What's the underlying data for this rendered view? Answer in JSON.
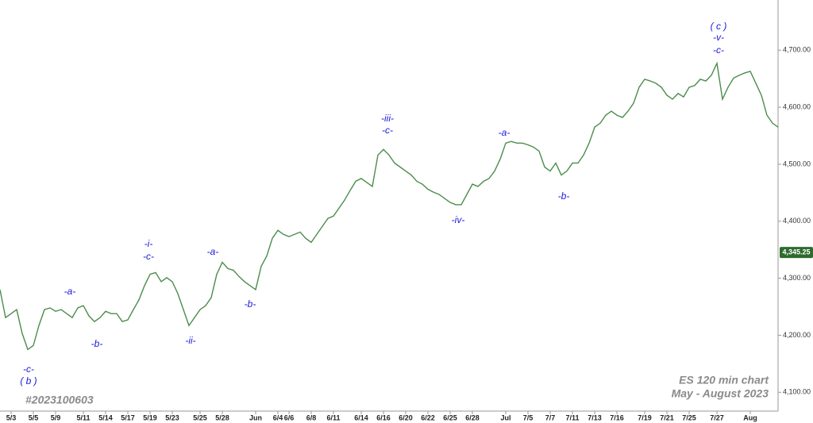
{
  "chart_data": {
    "type": "line",
    "title": "ES 120 min chart",
    "subtitle": "May - August 2023",
    "chart_id": "#2023100603",
    "color": "#4c8c4c",
    "last_price": {
      "value": 4345.25,
      "label": "4,345.25"
    },
    "ylim": [
      4067,
      4788
    ],
    "yticks": [
      {
        "value": 4100,
        "label": "4,100.00"
      },
      {
        "value": 4200,
        "label": "4,200.00"
      },
      {
        "value": 4300,
        "label": "4,300.00"
      },
      {
        "value": 4400,
        "label": "4,400.00"
      },
      {
        "value": 4500,
        "label": "4,500.00"
      },
      {
        "value": 4600,
        "label": "4,600.00"
      },
      {
        "value": 4700,
        "label": "4,700.00"
      }
    ],
    "annotations": [
      "( c )",
      "-v-",
      "-c-",
      "-iii-",
      "-c-",
      "-a-",
      "-b-",
      "-iv-",
      "-a-",
      "-b-",
      "-ii-",
      "-i-",
      "-c-",
      "-a-",
      "-b-",
      "-c-",
      "( b )"
    ],
    "categories": [
      null,
      null,
      "5/3",
      null,
      null,
      null,
      "5/5",
      null,
      null,
      null,
      "5/9",
      null,
      null,
      null,
      null,
      "5/11",
      null,
      null,
      null,
      "5/14",
      null,
      null,
      null,
      "5/17",
      null,
      null,
      null,
      "5/19",
      null,
      null,
      null,
      "5/23",
      null,
      null,
      null,
      null,
      "5/25",
      null,
      null,
      null,
      "5/28",
      null,
      null,
      null,
      null,
      null,
      "Jun",
      null,
      null,
      null,
      "6/4",
      null,
      "6/6",
      null,
      null,
      null,
      "6/8",
      null,
      null,
      null,
      "6/11",
      null,
      null,
      null,
      null,
      "6/14",
      null,
      null,
      null,
      "6/16",
      null,
      null,
      null,
      "6/20",
      null,
      null,
      null,
      "6/22",
      null,
      null,
      null,
      "6/25",
      null,
      null,
      null,
      "6/28",
      null,
      null,
      null,
      null,
      null,
      "Jul",
      null,
      null,
      null,
      "7/5",
      null,
      null,
      null,
      "7/7",
      null,
      null,
      null,
      "7/11",
      null,
      null,
      null,
      "7/13",
      null,
      null,
      null,
      "7/16",
      null,
      null,
      null,
      null,
      "7/19",
      null,
      null,
      null,
      "7/21",
      null,
      null,
      null,
      "7/25",
      null,
      null,
      null,
      null,
      "7/27",
      null,
      null,
      null,
      null,
      null,
      "Aug",
      null,
      null,
      null,
      null,
      null
    ],
    "values": [
      4280,
      4231,
      4238,
      4245,
      4203,
      4175,
      4182,
      4217,
      4245,
      4248,
      4242,
      4245,
      4238,
      4231,
      4248,
      4252,
      4234,
      4224,
      4231,
      4242,
      4238,
      4238,
      4224,
      4227,
      4245,
      4262,
      4287,
      4307,
      4310,
      4294,
      4301,
      4294,
      4273,
      4245,
      4217,
      4231,
      4245,
      4252,
      4266,
      4307,
      4328,
      4317,
      4314,
      4303,
      4294,
      4287,
      4280,
      4321,
      4339,
      4370,
      4384,
      4377,
      4373,
      4377,
      4381,
      4370,
      4363,
      4377,
      4391,
      4405,
      4409,
      4423,
      4437,
      4454,
      4470,
      4475,
      4468,
      4461,
      4516,
      4526,
      4516,
      4502,
      4495,
      4488,
      4481,
      4470,
      4465,
      4456,
      4451,
      4447,
      4440,
      4433,
      4429,
      4429,
      4447,
      4465,
      4461,
      4470,
      4475,
      4488,
      4509,
      4537,
      4540,
      4537,
      4537,
      4534,
      4530,
      4523,
      4495,
      4488,
      4502,
      4481,
      4488,
      4502,
      4502,
      4516,
      4537,
      4565,
      4572,
      4586,
      4593,
      4586,
      4582,
      4593,
      4607,
      4635,
      4649,
      4646,
      4642,
      4635,
      4621,
      4614,
      4624,
      4618,
      4635,
      4638,
      4649,
      4646,
      4656,
      4677,
      4614,
      4635,
      4651,
      4656,
      4660,
      4663,
      4642,
      4621,
      4586,
      4572,
      4565
    ]
  }
}
